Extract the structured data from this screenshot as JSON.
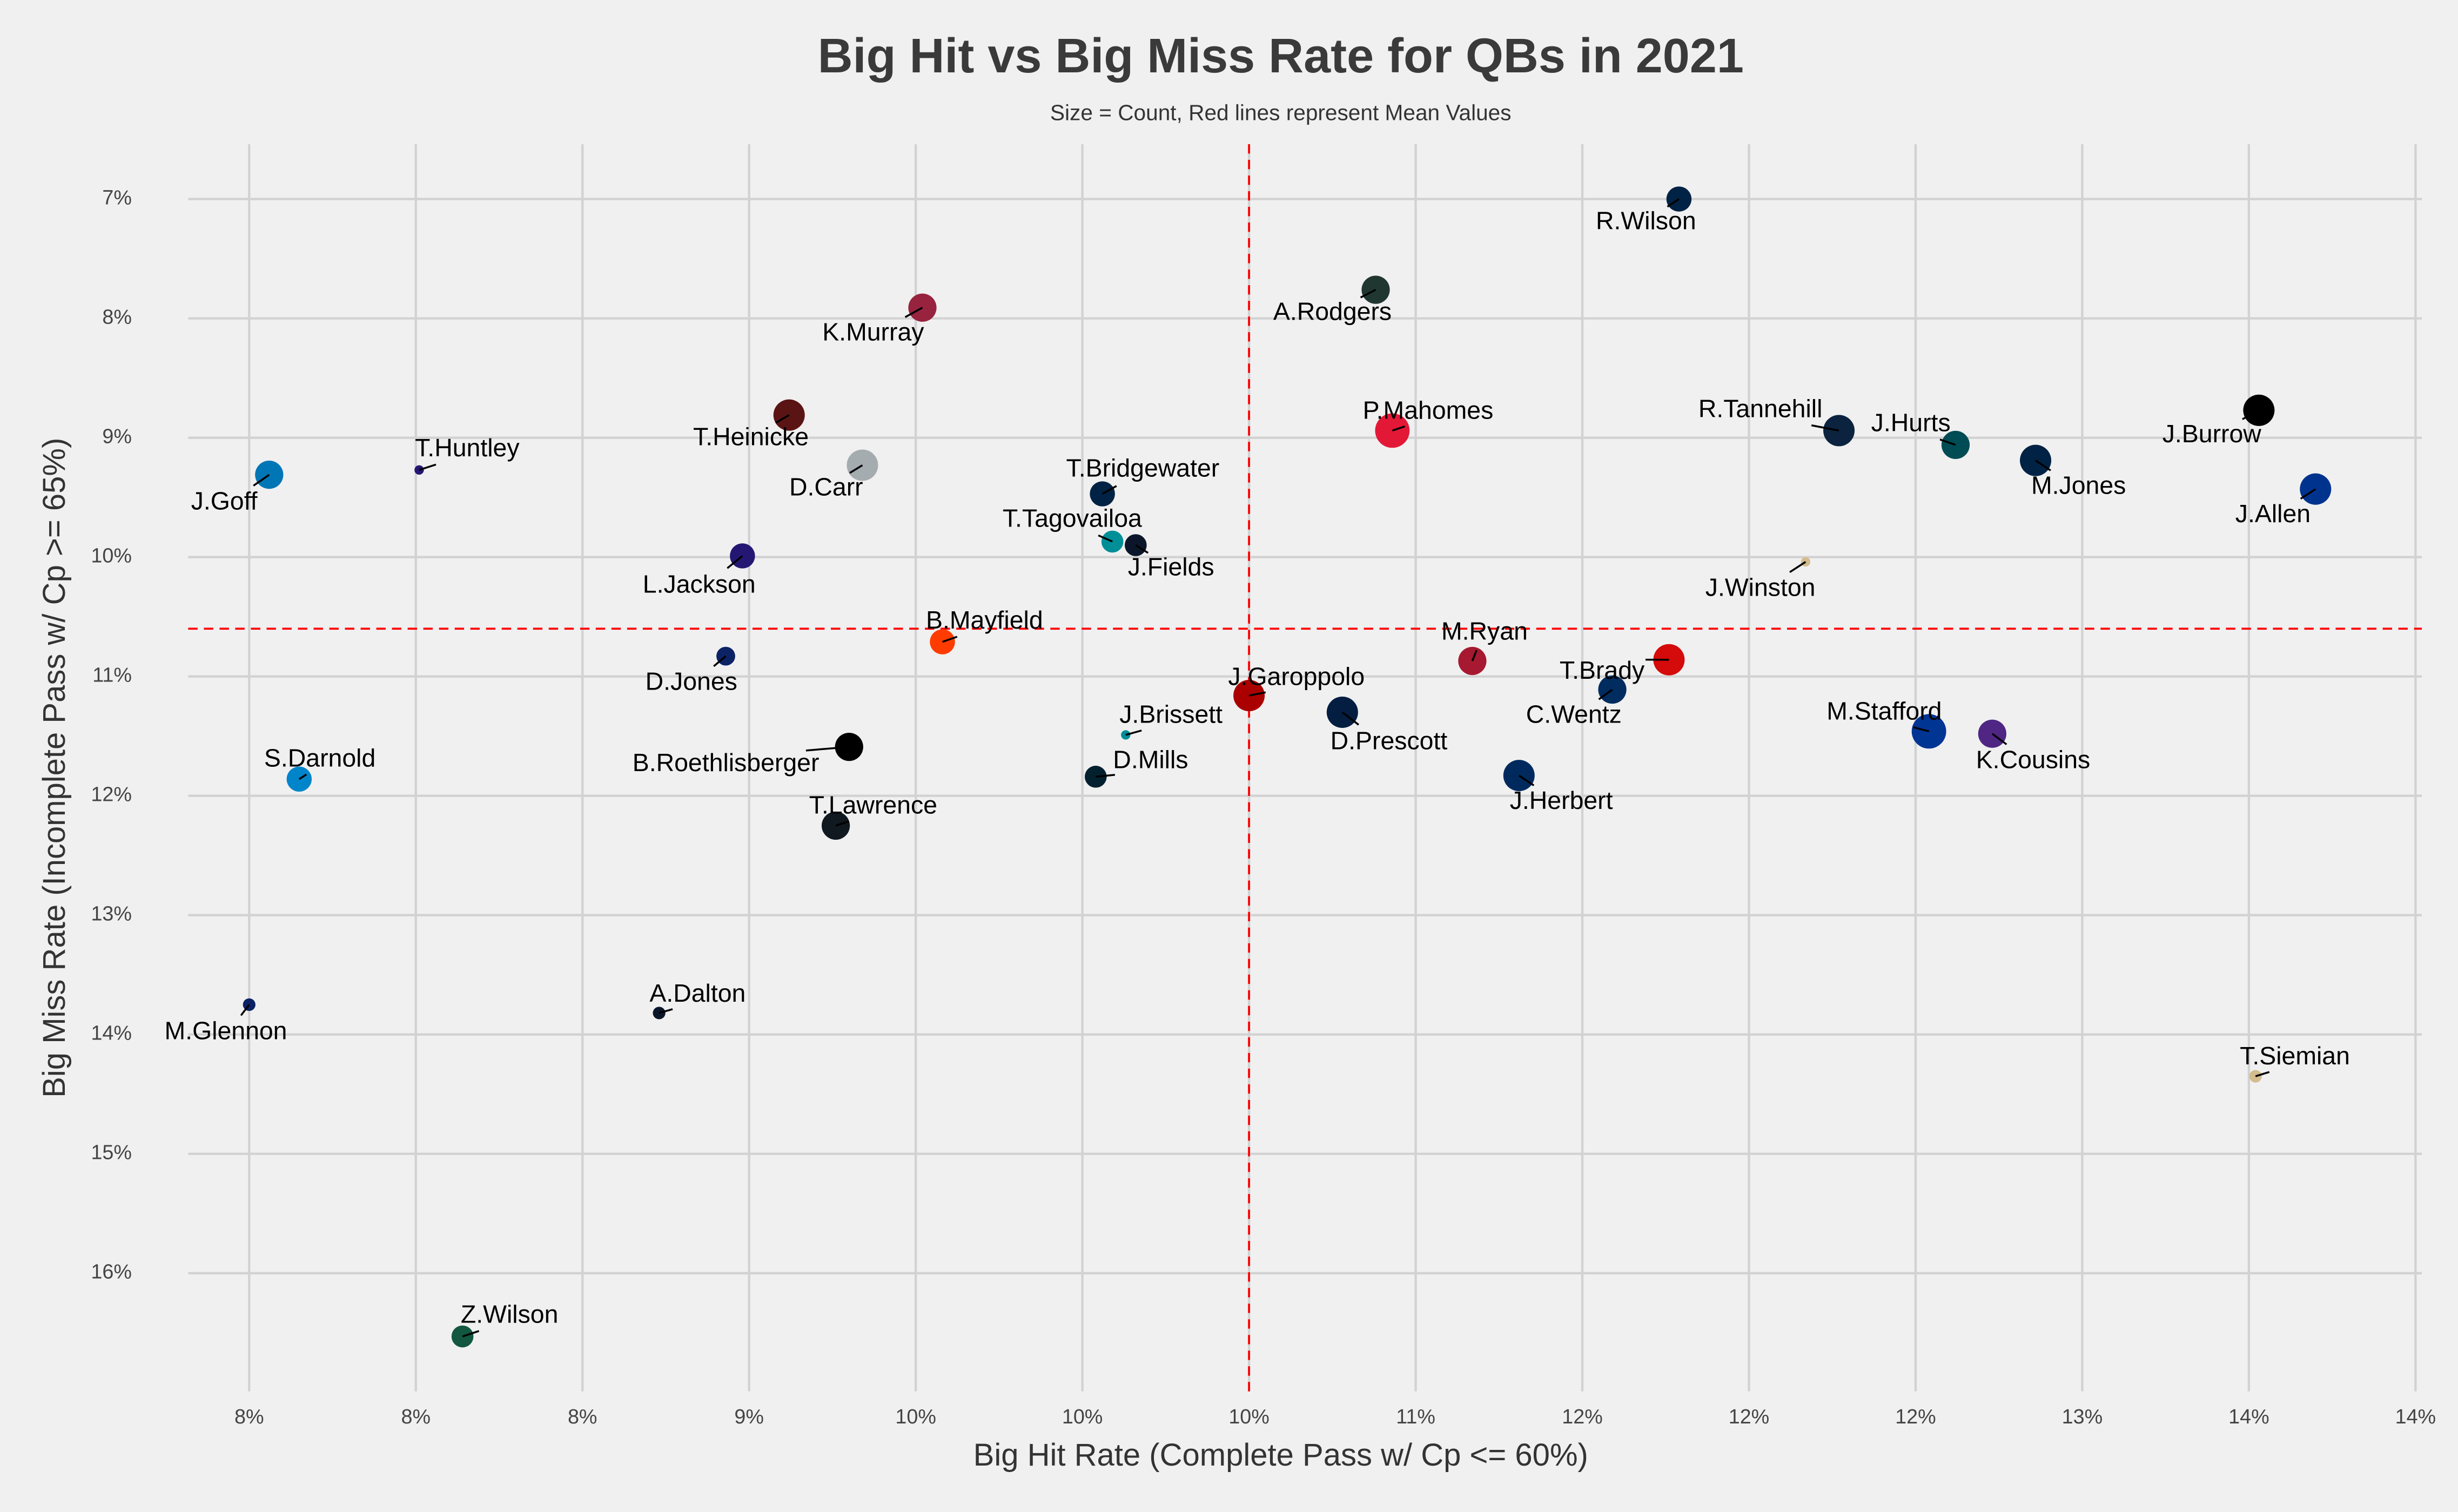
{
  "chart_data": {
    "type": "scatter",
    "title": "Big Hit vs Big Miss Rate for QBs in 2021",
    "subtitle": "Size = Count, Red lines represent Mean Values",
    "x_label": "Big Hit Rate (Complete Pass w/ Cp <= 60%)",
    "y_label": "Big Miss Rate (Incomplete Pass w/ Cp >= 65%)",
    "xlim": [
      7.317,
      14.019
    ],
    "ylim": [
      16.99,
      6.54
    ],
    "xticks": [
      {
        "value": 7.5,
        "label": "8%"
      },
      {
        "value": 8.0,
        "label": "8%"
      },
      {
        "value": 8.5,
        "label": "8%"
      },
      {
        "value": 9.0,
        "label": "9%"
      },
      {
        "value": 9.5,
        "label": "10%"
      },
      {
        "value": 10.0,
        "label": "10%"
      },
      {
        "value": 10.5,
        "label": "10%"
      },
      {
        "value": 11.0,
        "label": "11%"
      },
      {
        "value": 11.5,
        "label": "12%"
      },
      {
        "value": 12.0,
        "label": "12%"
      },
      {
        "value": 12.5,
        "label": "12%"
      },
      {
        "value": 13.0,
        "label": "13%"
      },
      {
        "value": 13.5,
        "label": "14%"
      },
      {
        "value": 14.0,
        "label": "14%"
      }
    ],
    "yticks": [
      {
        "value": 7,
        "label": "7%"
      },
      {
        "value": 8,
        "label": "8%"
      },
      {
        "value": 9,
        "label": "9%"
      },
      {
        "value": 10,
        "label": "10%"
      },
      {
        "value": 11,
        "label": "11%"
      },
      {
        "value": 12,
        "label": "12%"
      },
      {
        "value": 13,
        "label": "13%"
      },
      {
        "value": 14,
        "label": "14%"
      },
      {
        "value": 15,
        "label": "15%"
      },
      {
        "value": 16,
        "label": "16%"
      }
    ],
    "grid": true,
    "mean_x": 10.5,
    "mean_y": 10.6,
    "mean_color": "#ff0000",
    "labels": [
      "R.Wilson",
      "A.Rodgers",
      "K.Murray",
      "P.Mahomes",
      "J.Burrow",
      "R.Tannehill",
      "J.Hurts",
      "M.Jones",
      "J.Allen",
      "J.Goff",
      "T.Huntley",
      "T.Heinicke",
      "D.Carr",
      "T.Bridgewater",
      "T.Tagovailoa",
      "J.Fields",
      "L.Jackson",
      "J.Winston",
      "B.Mayfield",
      "M.Ryan",
      "T.Brady",
      "D.Jones",
      "J.Garoppolo",
      "C.Wentz",
      "D.Prescott",
      "M.Stafford",
      "K.Cousins",
      "J.Brissett",
      "B.Roethlisberger",
      "D.Mills",
      "J.Herbert",
      "S.Darnold",
      "T.Lawrence",
      "M.Glennon",
      "A.Dalton",
      "T.Siemian",
      "Z.Wilson"
    ],
    "x": [
      11.79,
      10.88,
      9.52,
      10.93,
      13.53,
      12.27,
      12.62,
      12.86,
      13.7,
      7.56,
      8.01,
      9.12,
      9.34,
      10.06,
      10.09,
      10.16,
      8.98,
      12.17,
      9.58,
      11.17,
      11.76,
      8.93,
      10.5,
      11.59,
      10.78,
      12.54,
      12.73,
      10.13,
      9.3,
      10.04,
      11.31,
      7.65,
      9.26,
      7.5,
      8.73,
      13.52,
      8.14
    ],
    "y": [
      7.0,
      7.76,
      7.91,
      8.94,
      8.77,
      8.94,
      9.06,
      9.19,
      9.43,
      9.31,
      9.27,
      8.81,
      9.23,
      9.47,
      9.87,
      9.9,
      9.99,
      10.04,
      10.71,
      10.87,
      10.86,
      10.83,
      11.16,
      11.11,
      11.3,
      11.46,
      11.48,
      11.49,
      11.59,
      11.84,
      11.83,
      11.86,
      12.25,
      13.75,
      13.82,
      14.35,
      16.53
    ],
    "sizes": [
      64,
      81,
      81,
      121,
      100,
      100,
      81,
      100,
      100,
      81,
      9,
      100,
      100,
      64,
      49,
      49,
      64,
      9,
      64,
      81,
      100,
      36,
      100,
      81,
      100,
      121,
      81,
      9,
      81,
      49,
      100,
      64,
      81,
      16,
      16,
      16,
      49
    ],
    "colors": [
      "#002244",
      "#203731",
      "#97233f",
      "#e31837",
      "#000000",
      "#0c2340",
      "#004c54",
      "#002244",
      "#00338d",
      "#0076b6",
      "#241773",
      "#5a1414",
      "#a5acaf",
      "#002244",
      "#008e97",
      "#0b162a",
      "#241773",
      "#d3bc8d",
      "#ff3c00",
      "#a71930",
      "#d50a0a",
      "#0b2265",
      "#aa0000",
      "#002c5f",
      "#041e42",
      "#003594",
      "#4f2683",
      "#008e97",
      "#000000",
      "#03202f",
      "#002a5e",
      "#0085ca",
      "#101820",
      "#0b2265",
      "#0b162a",
      "#d3bc8d",
      "#125740"
    ]
  }
}
